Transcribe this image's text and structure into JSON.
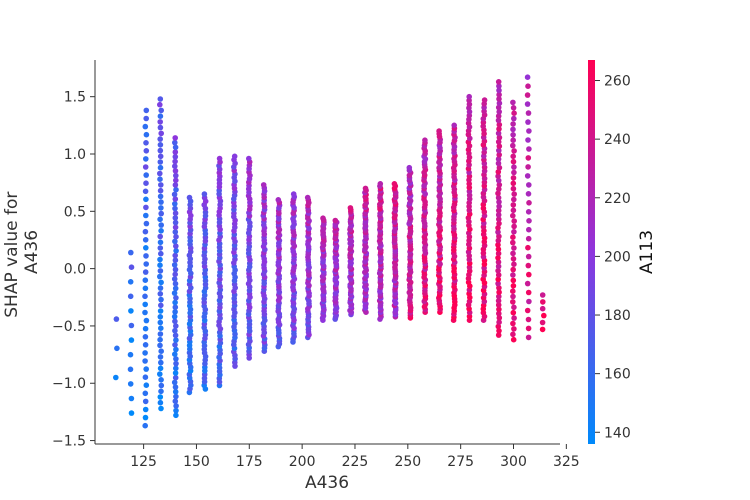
{
  "chart_data": {
    "type": "scatter",
    "subtype": "shap-dependence",
    "xlabel": "A436",
    "ylabel_lines": [
      "SHAP value for",
      "A436"
    ],
    "colorbar_label": "A113",
    "xlim": [
      102,
      322
    ],
    "ylim": [
      -1.53,
      1.82
    ],
    "x_ticks": [
      125,
      150,
      175,
      200,
      225,
      250,
      275,
      300,
      325
    ],
    "y_ticks": [
      -1.5,
      -1.0,
      -0.5,
      0.0,
      0.5,
      1.0,
      1.5
    ],
    "y_tick_labels": [
      "−1.5",
      "−1.0",
      "−0.5",
      "0.0",
      "0.5",
      "1.0",
      "1.5"
    ],
    "color_range": [
      136,
      267
    ],
    "color_ticks": [
      140,
      160,
      180,
      200,
      220,
      240,
      260
    ],
    "colormap": {
      "low": "#008afb",
      "mid": "#8f35dd",
      "high": "#ff0052"
    },
    "grid": false,
    "legend": "colorbar-right",
    "points": {
      "description": "SHAP dependence of A436, colored by A113",
      "columns": [
        {
          "x": 112,
          "ymin": -0.95,
          "ymax": -0.44,
          "n": 3,
          "c": 150
        },
        {
          "x": 119,
          "ymin": -1.26,
          "ymax": 0.14,
          "n": 12,
          "c": 150
        },
        {
          "x": 126,
          "ymin": -1.37,
          "ymax": 1.38,
          "n": 40,
          "c": 158
        },
        {
          "x": 133,
          "ymin": -1.22,
          "ymax": 1.48,
          "n": 55,
          "c": 162
        },
        {
          "x": 140,
          "ymin": -1.28,
          "ymax": 1.14,
          "n": 60,
          "c": 168
        },
        {
          "x": 147,
          "ymin": -1.08,
          "ymax": 0.62,
          "n": 55,
          "c": 170
        },
        {
          "x": 154,
          "ymin": -1.05,
          "ymax": 0.65,
          "n": 55,
          "c": 172
        },
        {
          "x": 161,
          "ymin": -1.02,
          "ymax": 0.96,
          "n": 65,
          "c": 178
        },
        {
          "x": 168,
          "ymin": -0.85,
          "ymax": 0.98,
          "n": 60,
          "c": 185
        },
        {
          "x": 175,
          "ymin": -0.78,
          "ymax": 0.96,
          "n": 60,
          "c": 190
        },
        {
          "x": 182,
          "ymin": -0.72,
          "ymax": 0.73,
          "n": 55,
          "c": 195
        },
        {
          "x": 189,
          "ymin": -0.68,
          "ymax": 0.6,
          "n": 55,
          "c": 198
        },
        {
          "x": 196,
          "ymin": -0.64,
          "ymax": 0.65,
          "n": 55,
          "c": 200
        },
        {
          "x": 203,
          "ymin": -0.6,
          "ymax": 0.62,
          "n": 55,
          "c": 204
        },
        {
          "x": 210,
          "ymin": -0.45,
          "ymax": 0.44,
          "n": 50,
          "c": 208
        },
        {
          "x": 216,
          "ymin": -0.44,
          "ymax": 0.42,
          "n": 55,
          "c": 212
        },
        {
          "x": 223,
          "ymin": -0.4,
          "ymax": 0.53,
          "n": 55,
          "c": 216
        },
        {
          "x": 230,
          "ymin": -0.38,
          "ymax": 0.7,
          "n": 60,
          "c": 220
        },
        {
          "x": 237,
          "ymin": -0.44,
          "ymax": 0.74,
          "n": 60,
          "c": 224
        },
        {
          "x": 244,
          "ymin": -0.42,
          "ymax": 0.74,
          "n": 60,
          "c": 228
        },
        {
          "x": 251,
          "ymin": -0.43,
          "ymax": 0.88,
          "n": 60,
          "c": 232
        },
        {
          "x": 258,
          "ymin": -0.38,
          "ymax": 1.12,
          "n": 65,
          "c": 236
        },
        {
          "x": 265,
          "ymin": -0.38,
          "ymax": 1.2,
          "n": 65,
          "c": 240
        },
        {
          "x": 272,
          "ymin": -0.45,
          "ymax": 1.25,
          "n": 65,
          "c": 242
        },
        {
          "x": 279,
          "ymin": -0.45,
          "ymax": 1.5,
          "n": 60,
          "c": 244
        },
        {
          "x": 286,
          "ymin": -0.45,
          "ymax": 1.47,
          "n": 60,
          "c": 244
        },
        {
          "x": 293,
          "ymin": -0.58,
          "ymax": 1.63,
          "n": 60,
          "c": 242
        },
        {
          "x": 300,
          "ymin": -0.62,
          "ymax": 1.45,
          "n": 45,
          "c": 240
        },
        {
          "x": 307,
          "ymin": -0.6,
          "ymax": 1.67,
          "n": 30,
          "c": 236
        },
        {
          "x": 314,
          "ymin": -0.53,
          "ymax": -0.23,
          "n": 6,
          "c": 255
        }
      ]
    }
  }
}
